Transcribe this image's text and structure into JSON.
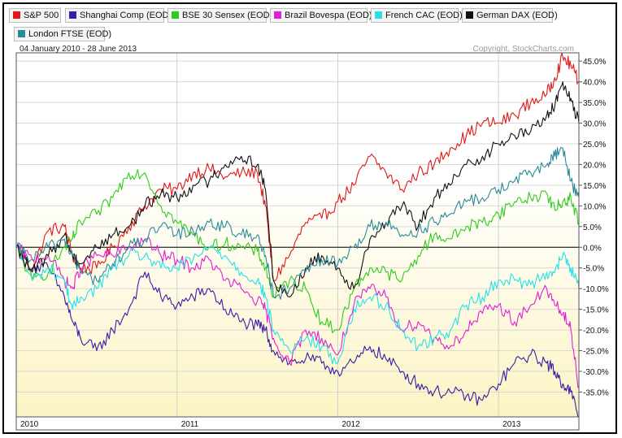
{
  "chart_data": {
    "type": "line",
    "date_range": "04 January 2010 - 28 June 2013",
    "copyright": "Copyright, StockCharts.com",
    "y_unit": "%",
    "ylim": [
      -41,
      47
    ],
    "y_ticks": [
      "45.0%",
      "40.0%",
      "35.0%",
      "30.0%",
      "25.0%",
      "20.0%",
      "15.0%",
      "10.0%",
      "5.0%",
      "0.0%",
      "-5.0%",
      "-10.0%",
      "-15.0%",
      "-20.0%",
      "-25.0%",
      "-30.0%",
      "-35.0%"
    ],
    "y_tick_values": [
      45,
      40,
      35,
      30,
      25,
      20,
      15,
      10,
      5,
      0,
      -5,
      -10,
      -15,
      -20,
      -25,
      -30,
      -35
    ],
    "x_range": [
      2010.0,
      2013.5
    ],
    "x_ticks": [
      "2010",
      "2011",
      "2012",
      "2013"
    ],
    "x_tick_values": [
      2010.0,
      2011.0,
      2012.0,
      2013.0
    ],
    "x": [
      2010.0,
      2010.1,
      2010.2,
      2010.3,
      2010.35,
      2010.4,
      2010.5,
      2010.6,
      2010.7,
      2010.8,
      2010.9,
      2011.0,
      2011.1,
      2011.2,
      2011.3,
      2011.4,
      2011.5,
      2011.55,
      2011.6,
      2011.7,
      2011.8,
      2011.9,
      2012.0,
      2012.1,
      2012.2,
      2012.3,
      2012.4,
      2012.5,
      2012.6,
      2012.7,
      2012.8,
      2012.9,
      2013.0,
      2013.1,
      2013.2,
      2013.3,
      2013.35,
      2013.4,
      2013.45,
      2013.5
    ],
    "series": [
      {
        "name": "S&P 500",
        "color": "#e01818",
        "values": [
          0,
          -5,
          4,
          5,
          -2,
          -5,
          -5,
          0,
          5,
          10,
          14,
          14,
          18,
          19,
          17,
          18,
          18,
          10,
          -8,
          -2,
          6,
          7,
          11,
          15,
          22,
          18,
          14,
          18,
          20,
          24,
          27,
          30,
          30,
          32,
          35,
          37,
          41,
          46,
          44,
          40
        ]
      },
      {
        "name": "Shanghai Comp (EOD)",
        "color": "#3a1ca8",
        "values": [
          0,
          -5,
          -5,
          -12,
          -18,
          -22,
          -25,
          -20,
          -15,
          -6,
          -12,
          -14,
          -12,
          -10,
          -15,
          -18,
          -19,
          -20,
          -25,
          -28,
          -27,
          -28,
          -30,
          -28,
          -24,
          -27,
          -30,
          -33,
          -35,
          -35,
          -36,
          -37,
          -33,
          -28,
          -26,
          -28,
          -30,
          -33,
          -35,
          -41
        ]
      },
      {
        "name": "BSE 30 Sensex (EOD)",
        "color": "#2ecc1a",
        "values": [
          0,
          -8,
          -6,
          0,
          2,
          6,
          8,
          12,
          18,
          18,
          10,
          6,
          3,
          0,
          1,
          0,
          -1,
          -5,
          -12,
          -8,
          -10,
          -18,
          -20,
          -10,
          -5,
          -6,
          -8,
          -2,
          3,
          2,
          5,
          6,
          8,
          11,
          12,
          13,
          9,
          11,
          12,
          6
        ]
      },
      {
        "name": "Brazil Bovespa (EOD)",
        "color": "#e020d8",
        "values": [
          0,
          -3,
          -2,
          -8,
          -10,
          -5,
          -2,
          -2,
          0,
          2,
          -2,
          -3,
          -5,
          -3,
          -8,
          -10,
          -13,
          -15,
          -22,
          -28,
          -20,
          -22,
          -26,
          -14,
          -10,
          -12,
          -20,
          -18,
          -22,
          -24,
          -20,
          -16,
          -14,
          -18,
          -14,
          -10,
          -14,
          -16,
          -20,
          -34
        ]
      },
      {
        "name": "French CAC (EOD)",
        "color": "#28e0ea",
        "values": [
          0,
          -8,
          -5,
          -8,
          -15,
          -12,
          -10,
          -5,
          -2,
          -2,
          -5,
          -5,
          -3,
          0,
          -2,
          -6,
          -8,
          -12,
          -20,
          -25,
          -22,
          -24,
          -28,
          -15,
          -12,
          -14,
          -20,
          -24,
          -22,
          -20,
          -14,
          -12,
          -8,
          -8,
          -9,
          -6,
          -6,
          -2,
          -5,
          -10
        ]
      },
      {
        "name": "German DAX (EOD)",
        "color": "#111111",
        "values": [
          0,
          -6,
          -2,
          3,
          -2,
          -4,
          0,
          3,
          5,
          10,
          13,
          12,
          15,
          16,
          20,
          22,
          20,
          14,
          -8,
          -12,
          -5,
          -2,
          -5,
          -10,
          2,
          6,
          10,
          5,
          12,
          15,
          20,
          22,
          25,
          27,
          28,
          32,
          34,
          40,
          36,
          30
        ]
      },
      {
        "name": "London FTSE (EOD)",
        "color": "#2a8a99",
        "values": [
          0,
          -3,
          0,
          2,
          -2,
          -6,
          -8,
          -4,
          0,
          2,
          5,
          3,
          4,
          6,
          5,
          3,
          3,
          -2,
          -12,
          -10,
          -6,
          -3,
          -4,
          0,
          5,
          6,
          3,
          4,
          6,
          8,
          11,
          12,
          14,
          16,
          18,
          20,
          22,
          24,
          16,
          12
        ]
      }
    ]
  }
}
